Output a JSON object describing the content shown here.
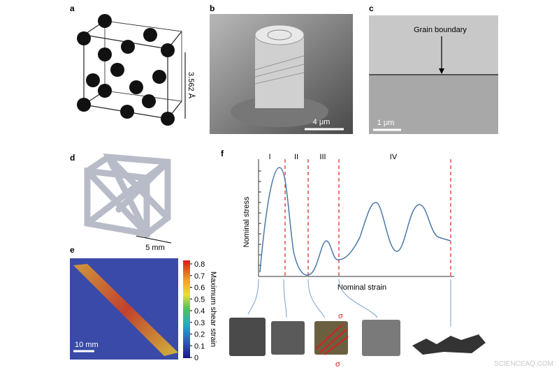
{
  "panels": {
    "a": {
      "label": "a",
      "lattice_constant": "3.562 Å"
    },
    "b": {
      "label": "b",
      "scale_bar": "4 μm"
    },
    "c": {
      "label": "c",
      "annotation": "Grain boundary",
      "scale_bar": "1 μm"
    },
    "d": {
      "label": "d",
      "scale_bar": "5 mm"
    },
    "e": {
      "label": "e",
      "scale_bar": "10 mm",
      "colorbar_title": "Maximum shear strain",
      "colorbar_ticks": [
        0.8,
        0.7,
        0.6,
        0.5,
        0.4,
        0.3,
        0.2,
        0.1,
        0
      ]
    },
    "f": {
      "label": "f",
      "y_label": "Nominal stress",
      "x_label": "Nominal strain",
      "stages": [
        "I",
        "II",
        "III",
        "IV"
      ],
      "stress_symbol_top": "σ",
      "stress_symbol_bottom": "σ"
    }
  },
  "watermark": "SCIENCEAQ.COM"
}
